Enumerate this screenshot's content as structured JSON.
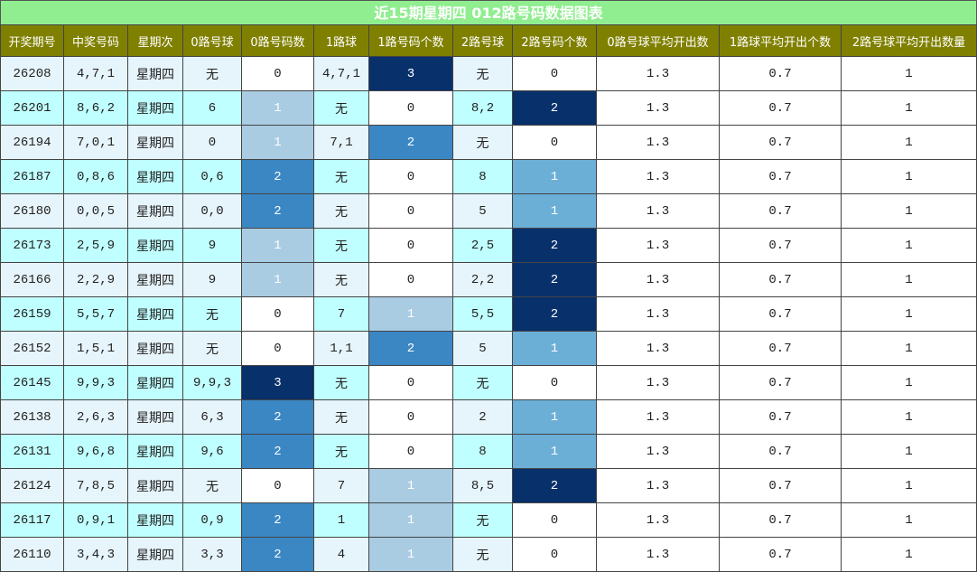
{
  "title": "近15期星期四 012路号码数据图表",
  "table": {
    "headers": [
      "开奖期号",
      "中奖号码",
      "星期次",
      "0路号球",
      "0路号码数",
      "1路球",
      "1路号码个数",
      "2路号球",
      "2路号码个数",
      "0路号球平均开出数",
      "1路球平均开出个数",
      "2路号球平均开出数量"
    ],
    "rows": [
      [
        "26208",
        "4,7,1",
        "星期四",
        "无",
        0,
        "4,7,1",
        3,
        "无",
        0,
        1.3,
        0.7,
        1
      ],
      [
        "26201",
        "8,6,2",
        "星期四",
        "6",
        1,
        "无",
        0,
        "8,2",
        2,
        1.3,
        0.7,
        1
      ],
      [
        "26194",
        "7,0,1",
        "星期四",
        "0",
        1,
        "7,1",
        2,
        "无",
        0,
        1.3,
        0.7,
        1
      ],
      [
        "26187",
        "0,8,6",
        "星期四",
        "0,6",
        2,
        "无",
        0,
        "8",
        1,
        1.3,
        0.7,
        1
      ],
      [
        "26180",
        "0,0,5",
        "星期四",
        "0,0",
        2,
        "无",
        0,
        "5",
        1,
        1.3,
        0.7,
        1
      ],
      [
        "26173",
        "2,5,9",
        "星期四",
        "9",
        1,
        "无",
        0,
        "2,5",
        2,
        1.3,
        0.7,
        1
      ],
      [
        "26166",
        "2,2,9",
        "星期四",
        "9",
        1,
        "无",
        0,
        "2,2",
        2,
        1.3,
        0.7,
        1
      ],
      [
        "26159",
        "5,5,7",
        "星期四",
        "无",
        0,
        "7",
        1,
        "5,5",
        2,
        1.3,
        0.7,
        1
      ],
      [
        "26152",
        "1,5,1",
        "星期四",
        "无",
        0,
        "1,1",
        2,
        "5",
        1,
        1.3,
        0.7,
        1
      ],
      [
        "26145",
        "9,9,3",
        "星期四",
        "9,9,3",
        3,
        "无",
        0,
        "无",
        0,
        1.3,
        0.7,
        1
      ],
      [
        "26138",
        "2,6,3",
        "星期四",
        "6,3",
        2,
        "无",
        0,
        "2",
        1,
        1.3,
        0.7,
        1
      ],
      [
        "26131",
        "9,6,8",
        "星期四",
        "9,6",
        2,
        "无",
        0,
        "8",
        1,
        1.3,
        0.7,
        1
      ],
      [
        "26124",
        "7,8,5",
        "星期四",
        "无",
        0,
        "7",
        1,
        "8,5",
        2,
        1.3,
        0.7,
        1
      ],
      [
        "26117",
        "0,9,1",
        "星期四",
        "0,9",
        2,
        "1",
        1,
        "无",
        0,
        1.3,
        0.7,
        1
      ],
      [
        "26110",
        "3,4,3",
        "星期四",
        "3,3",
        2,
        "4",
        1,
        "无",
        0,
        1.3,
        0.7,
        1
      ]
    ]
  }
}
